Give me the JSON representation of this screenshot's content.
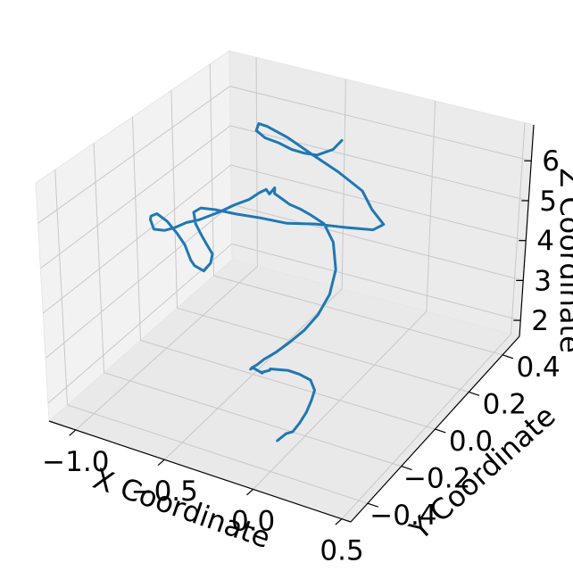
{
  "chart_data": {
    "type": "line3d",
    "title": "",
    "xlabel": "X Coordinate",
    "ylabel": "Y Coordinate",
    "zlabel": "Z Coordinate",
    "x_ticks": [
      "−1.0",
      "−0.5",
      "0.0",
      "0.5"
    ],
    "y_ticks": [
      "−0.4",
      "−0.2",
      "0.0",
      "0.2",
      "0.4"
    ],
    "z_ticks": [
      "2",
      "3",
      "4",
      "5",
      "6"
    ],
    "xlim": [
      -1.15,
      0.55
    ],
    "ylim": [
      -0.5,
      0.5
    ],
    "zlim": [
      1.6,
      6.9
    ],
    "grid": true,
    "line_color": "#1f77b4",
    "series": [
      {
        "name": "",
        "x": [
          -0.15,
          -0.17,
          -0.21,
          -0.26,
          -0.32,
          -0.4,
          -0.48,
          -0.55,
          -0.6,
          -0.62,
          -0.57,
          -0.48,
          -0.38,
          -0.28,
          -0.22,
          -0.18,
          -0.22,
          -0.33,
          -0.46,
          -0.58,
          -0.7,
          -0.8,
          -0.9,
          -0.96,
          -0.98,
          -0.95,
          -0.9,
          -0.86,
          -0.82,
          -0.8,
          -0.82,
          -0.86,
          -0.88,
          -0.92,
          -0.95,
          -0.97,
          -0.96,
          -0.94,
          -0.9,
          -0.85,
          -0.78,
          -0.72,
          -0.66,
          -0.6,
          -0.55,
          -0.5,
          -0.42,
          -0.35,
          -0.3,
          -0.27,
          -0.23,
          -0.22,
          -0.19,
          -0.14,
          -0.05,
          0.05,
          0.15,
          0.25,
          0.33,
          0.38,
          0.37,
          0.33,
          0.27,
          0.2,
          0.14,
          0.08,
          0.04,
          0.0,
          -0.02,
          -0.04,
          -0.02,
          -0.05,
          -0.02,
          -0.04,
          -0.01,
          0.02,
          0.06,
          0.1,
          0.12,
          0.11,
          0.1,
          0.09,
          0.07,
          0.03,
          0.0
        ],
        "y": [
          0.2,
          0.17,
          0.12,
          0.1,
          0.09,
          0.1,
          0.1,
          0.12,
          0.18,
          0.24,
          0.3,
          0.34,
          0.38,
          0.41,
          0.4,
          0.42,
          0.4,
          0.36,
          0.32,
          0.28,
          0.25,
          0.22,
          0.2,
          0.18,
          0.16,
          0.14,
          0.12,
          0.11,
          0.1,
          0.07,
          0.05,
          0.04,
          0.04,
          0.05,
          0.04,
          0.01,
          -0.05,
          -0.1,
          -0.14,
          -0.17,
          -0.18,
          -0.18,
          -0.17,
          -0.16,
          -0.15,
          -0.14,
          -0.13,
          -0.12,
          -0.11,
          -0.1,
          -0.12,
          -0.1,
          -0.13,
          -0.15,
          -0.18,
          -0.22,
          -0.26,
          -0.28,
          -0.31,
          -0.35,
          -0.38,
          -0.41,
          -0.43,
          -0.45,
          -0.47,
          -0.48,
          -0.48,
          -0.47,
          -0.46,
          -0.43,
          -0.4,
          -0.38,
          -0.36,
          -0.34,
          -0.32,
          -0.3,
          -0.28,
          -0.26,
          -0.26,
          -0.27,
          -0.29,
          -0.32,
          -0.34,
          -0.34,
          -0.36
        ],
        "z": [
          6.65,
          6.53,
          6.53,
          6.58,
          6.62,
          6.62,
          6.63,
          6.63,
          6.5,
          6.2,
          5.8,
          5.4,
          5.0,
          4.6,
          4.3,
          3.95,
          3.85,
          3.9,
          3.95,
          3.95,
          4.02,
          4.08,
          4.12,
          4.15,
          4.1,
          3.95,
          3.85,
          3.72,
          3.6,
          3.53,
          3.4,
          3.5,
          3.6,
          3.85,
          4.1,
          4.45,
          4.85,
          5.0,
          5.12,
          5.08,
          5.18,
          5.32,
          5.48,
          5.58,
          5.7,
          5.82,
          6.05,
          6.22,
          6.4,
          6.48,
          6.5,
          6.58,
          6.6,
          6.66,
          6.72,
          6.9,
          7.05,
          7.05,
          6.85,
          6.45,
          6.0,
          5.6,
          5.25,
          4.95,
          4.72,
          4.52,
          4.35,
          4.2,
          4.1,
          4.0,
          3.8,
          3.7,
          3.72,
          3.65,
          3.6,
          3.55,
          3.45,
          3.3,
          3.1,
          2.9,
          2.7,
          2.55,
          2.4,
          2.3,
          2.18
        ]
      }
    ]
  }
}
